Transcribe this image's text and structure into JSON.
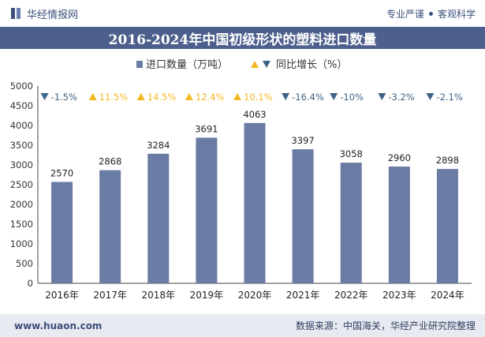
{
  "header": {
    "brand": "华经情报网",
    "slogan_left": "专业严谨",
    "slogan_right": "客观科学"
  },
  "chart_data": {
    "type": "bar",
    "title": "2016-2024年中国初级形状的塑料进口数量",
    "categories": [
      "2016年",
      "2017年",
      "2018年",
      "2019年",
      "2020年",
      "2021年",
      "2022年",
      "2023年",
      "2024年"
    ],
    "series": [
      {
        "name": "进口数量（万吨）",
        "values": [
          2570,
          2868,
          3284,
          3691,
          4063,
          3397,
          3058,
          2960,
          2898
        ],
        "labels": [
          "2570",
          "2868",
          "3284",
          "3691",
          "4063",
          "3397",
          "3058",
          "2960",
          "2898"
        ],
        "color": "#6a7ba4"
      },
      {
        "name": "同比增长（%）",
        "values": [
          -1.5,
          11.5,
          14.5,
          12.4,
          10.1,
          -16.4,
          -10,
          -3.2,
          -2.1
        ],
        "labels": [
          "-1.5%",
          "11.5%",
          "14.5%",
          "12.4%",
          "10.1%",
          "-16.4%",
          "-10%",
          "-3.2%",
          "-2.1%"
        ],
        "up_color": "#f2b822",
        "down_color": "#3c6386"
      }
    ],
    "yticks": [
      "0",
      "500",
      "1000",
      "1500",
      "2000",
      "2500",
      "3000",
      "3500",
      "4000",
      "4500",
      "5000"
    ],
    "ylim": [
      0,
      5000
    ],
    "legend_position": "top-center",
    "grid": false
  },
  "footer": {
    "url": "www.huaon.com",
    "source": "数据来源：中国海关，华经产业研究院整理"
  }
}
